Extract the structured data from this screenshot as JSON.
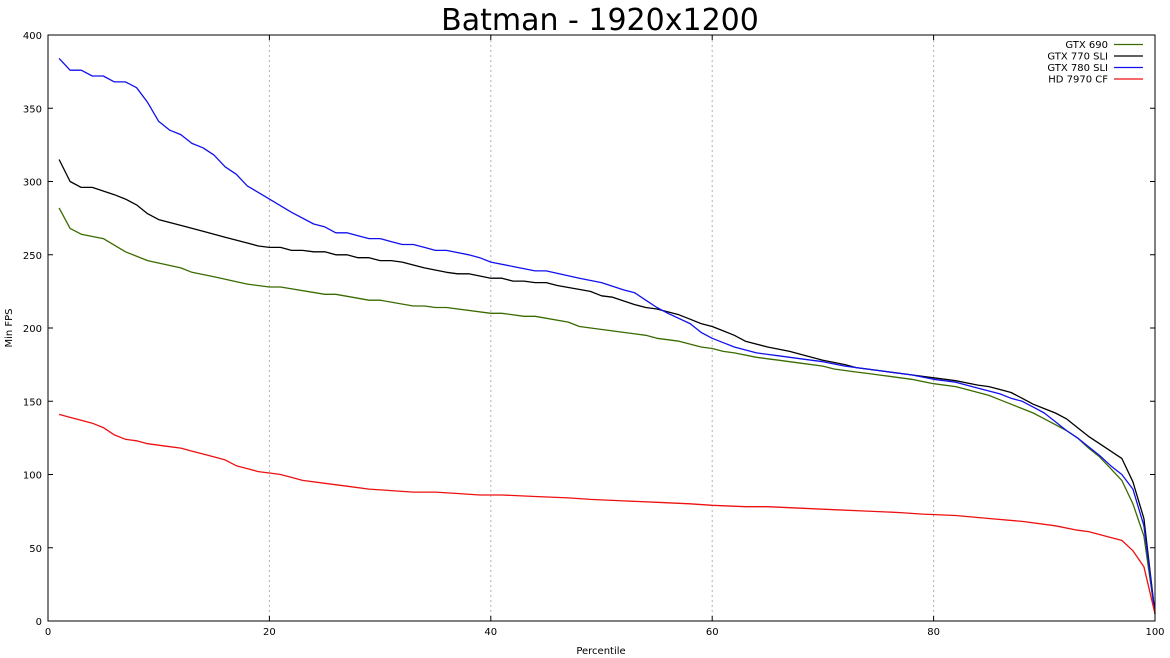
{
  "chart_data": {
    "type": "line",
    "title": "Batman - 1920x1200",
    "xlabel": "Percentile",
    "ylabel": "Min FPS",
    "xlim": [
      0,
      100
    ],
    "ylim": [
      0,
      400
    ],
    "xticks": [
      0,
      20,
      40,
      60,
      80,
      100
    ],
    "yticks": [
      0,
      50,
      100,
      150,
      200,
      250,
      300,
      350,
      400
    ],
    "grid": true,
    "legend_position": "top-right",
    "series": [
      {
        "name": "GTX 690",
        "color": "#3a6b00",
        "points": [
          [
            1,
            282
          ],
          [
            2,
            268
          ],
          [
            3,
            264
          ],
          [
            5,
            261
          ],
          [
            7,
            252
          ],
          [
            9,
            246
          ],
          [
            12,
            241
          ],
          [
            13,
            238
          ],
          [
            15,
            235
          ],
          [
            18,
            230
          ],
          [
            20,
            228
          ],
          [
            21,
            228
          ],
          [
            25,
            223
          ],
          [
            26,
            223
          ],
          [
            29,
            219
          ],
          [
            30,
            219
          ],
          [
            33,
            215
          ],
          [
            34,
            215
          ],
          [
            35,
            214
          ],
          [
            36,
            214
          ],
          [
            40,
            210
          ],
          [
            41,
            210
          ],
          [
            43,
            208
          ],
          [
            44,
            208
          ],
          [
            47,
            204
          ],
          [
            48,
            201
          ],
          [
            52,
            197
          ],
          [
            54,
            195
          ],
          [
            55,
            193
          ],
          [
            57,
            191
          ],
          [
            59,
            187
          ],
          [
            60,
            186
          ],
          [
            61,
            184
          ],
          [
            62,
            183
          ],
          [
            64,
            180
          ],
          [
            65,
            179
          ],
          [
            66,
            178
          ],
          [
            68,
            176
          ],
          [
            70,
            174
          ],
          [
            71,
            172
          ],
          [
            73,
            170
          ],
          [
            74,
            169
          ],
          [
            75,
            168
          ],
          [
            76,
            167
          ],
          [
            78,
            165
          ],
          [
            80,
            162
          ],
          [
            82,
            160
          ],
          [
            83,
            158
          ],
          [
            85,
            154
          ],
          [
            86,
            151
          ],
          [
            88,
            145
          ],
          [
            89,
            142
          ],
          [
            90,
            138
          ],
          [
            92,
            130
          ],
          [
            93,
            125
          ],
          [
            94,
            118
          ],
          [
            95,
            112
          ],
          [
            96,
            104
          ],
          [
            97,
            96
          ],
          [
            98,
            80
          ],
          [
            99,
            58
          ],
          [
            100,
            5
          ]
        ]
      },
      {
        "name": "GTX 770 SLI",
        "color": "#000000",
        "points": [
          [
            1,
            315
          ],
          [
            2,
            300
          ],
          [
            3,
            296
          ],
          [
            4,
            296
          ],
          [
            6,
            291
          ],
          [
            7,
            288
          ],
          [
            8,
            284
          ],
          [
            9,
            278
          ],
          [
            10,
            274
          ],
          [
            12,
            270
          ],
          [
            14,
            266
          ],
          [
            16,
            262
          ],
          [
            18,
            258
          ],
          [
            19,
            256
          ],
          [
            20,
            255
          ],
          [
            21,
            255
          ],
          [
            22,
            253
          ],
          [
            23,
            253
          ],
          [
            24,
            252
          ],
          [
            25,
            252
          ],
          [
            26,
            250
          ],
          [
            27,
            250
          ],
          [
            28,
            248
          ],
          [
            29,
            248
          ],
          [
            30,
            246
          ],
          [
            31,
            246
          ],
          [
            32,
            245
          ],
          [
            34,
            241
          ],
          [
            36,
            238
          ],
          [
            37,
            237
          ],
          [
            38,
            237
          ],
          [
            40,
            234
          ],
          [
            41,
            234
          ],
          [
            42,
            232
          ],
          [
            43,
            232
          ],
          [
            44,
            231
          ],
          [
            45,
            231
          ],
          [
            46,
            229
          ],
          [
            49,
            225
          ],
          [
            50,
            222
          ],
          [
            51,
            221
          ],
          [
            53,
            216
          ],
          [
            54,
            214
          ],
          [
            55,
            213
          ],
          [
            57,
            209
          ],
          [
            58,
            206
          ],
          [
            59,
            203
          ],
          [
            60,
            201
          ],
          [
            61,
            198
          ],
          [
            62,
            195
          ],
          [
            63,
            191
          ],
          [
            65,
            187
          ],
          [
            67,
            184
          ],
          [
            68,
            182
          ],
          [
            70,
            178
          ],
          [
            72,
            175
          ],
          [
            73,
            173
          ],
          [
            75,
            171
          ],
          [
            78,
            168
          ],
          [
            80,
            166
          ],
          [
            82,
            164
          ],
          [
            84,
            161
          ],
          [
            85,
            160
          ],
          [
            86,
            158
          ],
          [
            87,
            156
          ],
          [
            88,
            152
          ],
          [
            89,
            148
          ],
          [
            90,
            145
          ],
          [
            91,
            142
          ],
          [
            92,
            138
          ],
          [
            93,
            132
          ],
          [
            94,
            126
          ],
          [
            95,
            121
          ],
          [
            96,
            116
          ],
          [
            97,
            111
          ],
          [
            98,
            95
          ],
          [
            99,
            70
          ],
          [
            100,
            5
          ]
        ]
      },
      {
        "name": "GTX 780 SLI",
        "color": "#1010ee",
        "points": [
          [
            1,
            384
          ],
          [
            2,
            376
          ],
          [
            3,
            376
          ],
          [
            4,
            372
          ],
          [
            5,
            372
          ],
          [
            6,
            368
          ],
          [
            7,
            368
          ],
          [
            8,
            364
          ],
          [
            9,
            354
          ],
          [
            10,
            341
          ],
          [
            11,
            335
          ],
          [
            12,
            332
          ],
          [
            13,
            326
          ],
          [
            14,
            323
          ],
          [
            15,
            318
          ],
          [
            16,
            310
          ],
          [
            17,
            305
          ],
          [
            18,
            297
          ],
          [
            20,
            288
          ],
          [
            22,
            279
          ],
          [
            24,
            271
          ],
          [
            25,
            269
          ],
          [
            26,
            265
          ],
          [
            27,
            265
          ],
          [
            28,
            263
          ],
          [
            29,
            261
          ],
          [
            30,
            261
          ],
          [
            31,
            259
          ],
          [
            32,
            257
          ],
          [
            33,
            257
          ],
          [
            34,
            255
          ],
          [
            35,
            253
          ],
          [
            36,
            253
          ],
          [
            38,
            250
          ],
          [
            39,
            248
          ],
          [
            40,
            245
          ],
          [
            42,
            242
          ],
          [
            44,
            239
          ],
          [
            45,
            239
          ],
          [
            48,
            234
          ],
          [
            50,
            231
          ],
          [
            52,
            226
          ],
          [
            53,
            224
          ],
          [
            54,
            219
          ],
          [
            55,
            214
          ],
          [
            56,
            210
          ],
          [
            58,
            203
          ],
          [
            59,
            197
          ],
          [
            60,
            193
          ],
          [
            61,
            190
          ],
          [
            62,
            187
          ],
          [
            64,
            183
          ],
          [
            65,
            182
          ],
          [
            66,
            181
          ],
          [
            68,
            179
          ],
          [
            70,
            177
          ],
          [
            72,
            174
          ],
          [
            74,
            172
          ],
          [
            76,
            170
          ],
          [
            78,
            168
          ],
          [
            80,
            165
          ],
          [
            82,
            163
          ],
          [
            84,
            159
          ],
          [
            85,
            157
          ],
          [
            86,
            155
          ],
          [
            87,
            152
          ],
          [
            88,
            150
          ],
          [
            89,
            146
          ],
          [
            90,
            142
          ],
          [
            91,
            136
          ],
          [
            92,
            130
          ],
          [
            93,
            125
          ],
          [
            94,
            119
          ],
          [
            95,
            113
          ],
          [
            96,
            106
          ],
          [
            97,
            100
          ],
          [
            98,
            90
          ],
          [
            99,
            65
          ],
          [
            100,
            5
          ]
        ]
      },
      {
        "name": "HD 7970 CF",
        "color": "#ee1010",
        "points": [
          [
            1,
            141
          ],
          [
            2,
            139
          ],
          [
            3,
            137
          ],
          [
            4,
            135
          ],
          [
            5,
            132
          ],
          [
            6,
            127
          ],
          [
            7,
            124
          ],
          [
            8,
            123
          ],
          [
            9,
            121
          ],
          [
            10,
            120
          ],
          [
            11,
            119
          ],
          [
            12,
            118
          ],
          [
            13,
            116
          ],
          [
            14,
            114
          ],
          [
            15,
            112
          ],
          [
            16,
            110
          ],
          [
            17,
            106
          ],
          [
            18,
            104
          ],
          [
            19,
            102
          ],
          [
            20,
            101
          ],
          [
            21,
            100
          ],
          [
            22,
            98
          ],
          [
            23,
            96
          ],
          [
            25,
            94
          ],
          [
            27,
            92
          ],
          [
            29,
            90
          ],
          [
            31,
            89
          ],
          [
            33,
            88
          ],
          [
            35,
            88
          ],
          [
            37,
            87
          ],
          [
            39,
            86
          ],
          [
            41,
            86
          ],
          [
            44,
            85
          ],
          [
            47,
            84
          ],
          [
            49,
            83
          ],
          [
            52,
            82
          ],
          [
            55,
            81
          ],
          [
            58,
            80
          ],
          [
            60,
            79
          ],
          [
            63,
            78
          ],
          [
            65,
            78
          ],
          [
            68,
            77
          ],
          [
            71,
            76
          ],
          [
            74,
            75
          ],
          [
            77,
            74
          ],
          [
            79,
            73
          ],
          [
            82,
            72
          ],
          [
            85,
            70
          ],
          [
            88,
            68
          ],
          [
            91,
            65
          ],
          [
            93,
            62
          ],
          [
            94,
            61
          ],
          [
            96,
            57
          ],
          [
            97,
            55
          ],
          [
            98,
            48
          ],
          [
            99,
            37
          ],
          [
            100,
            5
          ]
        ]
      }
    ]
  }
}
